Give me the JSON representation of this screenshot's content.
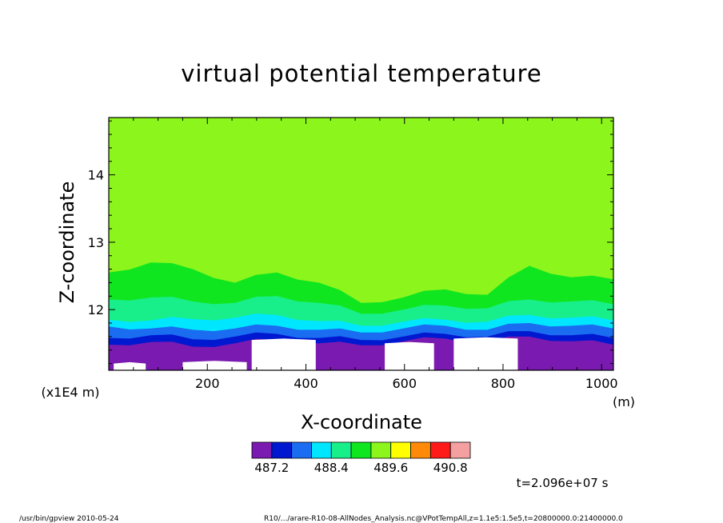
{
  "chart_data": {
    "type": "heatmap",
    "title": "virtual potential temperature",
    "xlabel": "X-coordinate",
    "ylabel": "Z-coordinate",
    "x_unit": "(m)",
    "y_unit": "(x1E4 m)",
    "xlim": [
      0,
      1024
    ],
    "ylim": [
      11.1,
      14.85
    ],
    "x_ticks": [
      200,
      400,
      600,
      800,
      1000
    ],
    "y_ticks": [
      12,
      13,
      14
    ],
    "x_tick_labels": [
      "200",
      "400",
      "600",
      "800",
      "1000"
    ],
    "y_tick_labels": [
      "12",
      "13",
      "14"
    ],
    "colorbar": {
      "colors": [
        "#7a1ab0",
        "#0018d0",
        "#1a6cf0",
        "#00e6ff",
        "#18ef8a",
        "#10e620",
        "#8cf51c",
        "#ffff00",
        "#ff8a0a",
        "#ff1a1a",
        "#f5a0a0"
      ],
      "tick_labels": [
        "487.2",
        "488.4",
        "489.6",
        "490.8"
      ]
    },
    "contour_levels": [
      {
        "level": 487.2,
        "color": "#7a1ab0",
        "z": [
          11.48,
          11.52,
          11.45,
          11.5,
          11.55,
          11.5,
          11.47,
          11.53,
          11.57,
          11.52,
          11.6,
          11.53,
          11.48
        ]
      },
      {
        "level": 487.6,
        "color": "#0018d0",
        "z": [
          11.58,
          11.62,
          11.56,
          11.6,
          11.64,
          11.58,
          11.55,
          11.6,
          11.64,
          11.6,
          11.68,
          11.62,
          11.58
        ]
      },
      {
        "level": 488.0,
        "color": "#1a6cf0",
        "z": [
          11.75,
          11.72,
          11.7,
          11.72,
          11.76,
          11.7,
          11.66,
          11.72,
          11.76,
          11.7,
          11.8,
          11.76,
          11.72
        ]
      },
      {
        "level": 488.4,
        "color": "#00e6ff",
        "z": [
          11.85,
          11.84,
          11.86,
          11.88,
          11.92,
          11.83,
          11.76,
          11.82,
          11.85,
          11.82,
          11.92,
          11.88,
          11.84
        ]
      },
      {
        "level": 488.8,
        "color": "#18ef8a",
        "z": [
          12.15,
          12.18,
          12.12,
          12.1,
          12.2,
          12.1,
          11.94,
          12.0,
          12.06,
          12.02,
          12.15,
          12.12,
          12.08
        ]
      },
      {
        "level": 489.2,
        "color": "#10e620",
        "z": [
          12.55,
          12.7,
          12.6,
          12.4,
          12.55,
          12.4,
          12.1,
          12.18,
          12.3,
          12.22,
          12.65,
          12.48,
          12.45
        ]
      }
    ],
    "background_level_color": "#8cf51c",
    "time_label": "t=2.096e+07 s"
  },
  "footer": {
    "left": "/usr/bin/gpview   2010-05-24",
    "right": "R10/.../arare-R10-08-AllNodes_Analysis.nc@VPotTempAll,z=1.1e5:1.5e5,t=20800000.0:21400000.0"
  }
}
